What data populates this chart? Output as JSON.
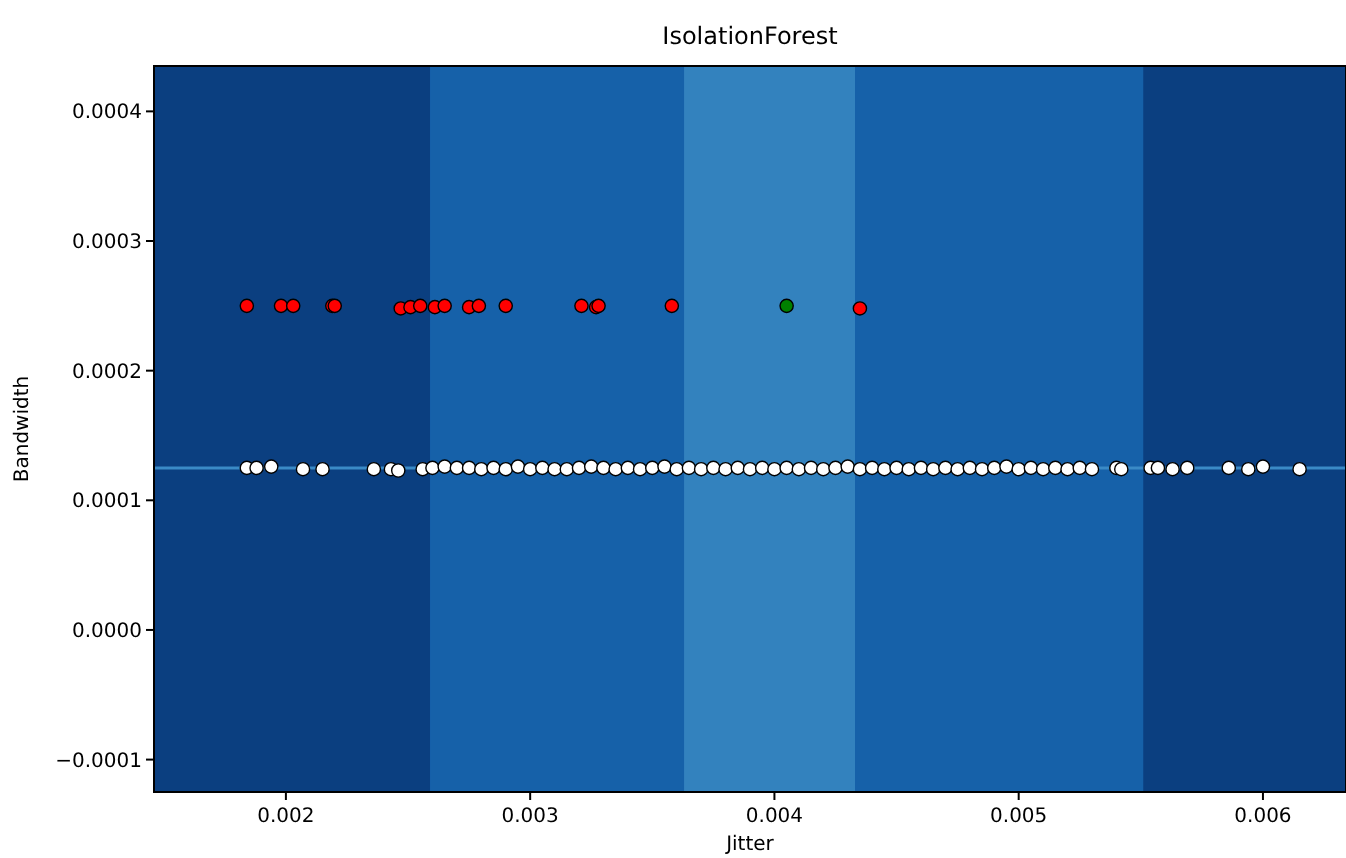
{
  "chart_data": {
    "type": "scatter",
    "title": "IsolationForest",
    "xlabel": "Jitter",
    "ylabel": "Bandwidth",
    "xlim": [
      0.00146,
      0.00634
    ],
    "ylim": [
      -0.000125,
      0.000435
    ],
    "xticks": [
      {
        "value": 0.002,
        "label": "0.002"
      },
      {
        "value": 0.003,
        "label": "0.003"
      },
      {
        "value": 0.004,
        "label": "0.004"
      },
      {
        "value": 0.005,
        "label": "0.005"
      },
      {
        "value": 0.006,
        "label": "0.006"
      }
    ],
    "yticks": [
      {
        "value": -0.0001,
        "label": "−0.0001"
      },
      {
        "value": 0,
        "label": "0.0000"
      },
      {
        "value": 0.0001,
        "label": "0.0001"
      },
      {
        "value": 0.0002,
        "label": "0.0002"
      },
      {
        "value": 0.0003,
        "label": "0.0003"
      },
      {
        "value": 0.0004,
        "label": "0.0004"
      }
    ],
    "bands": [
      {
        "axis": "x",
        "from": 0.00146,
        "to": 0.00634,
        "color": "#0b3f80"
      },
      {
        "axis": "x",
        "from": 0.00259,
        "to": 0.00551,
        "color": "#1661a9"
      },
      {
        "axis": "x",
        "from": 0.00363,
        "to": 0.00433,
        "color": "#3382be"
      }
    ],
    "ref_lines": [
      {
        "axis": "y",
        "value": 0.000125,
        "color": "#3a8ac6"
      }
    ],
    "marker": "circle",
    "series": [
      {
        "color": "#ffffff",
        "x": [
          0.00184,
          0.00188,
          0.00194,
          0.00207,
          0.00215,
          0.00236,
          0.00243,
          0.00246,
          0.00256,
          0.0026,
          0.00265,
          0.0027,
          0.00275,
          0.0028,
          0.00285,
          0.0029,
          0.00295,
          0.003,
          0.00305,
          0.0031,
          0.00315,
          0.0032,
          0.00325,
          0.0033,
          0.00335,
          0.0034,
          0.00345,
          0.0035,
          0.00355,
          0.0036,
          0.00365,
          0.0037,
          0.00375,
          0.0038,
          0.00385,
          0.0039,
          0.00395,
          0.004,
          0.00405,
          0.0041,
          0.00415,
          0.0042,
          0.00425,
          0.0043,
          0.00435,
          0.0044,
          0.00445,
          0.0045,
          0.00455,
          0.0046,
          0.00465,
          0.0047,
          0.00475,
          0.0048,
          0.00485,
          0.0049,
          0.00495,
          0.005,
          0.00505,
          0.0051,
          0.00515,
          0.0052,
          0.00525,
          0.0053,
          0.0054,
          0.00542,
          0.00554,
          0.00557,
          0.00563,
          0.00569,
          0.00586,
          0.00594,
          0.006,
          0.00615
        ],
        "values": [
          0.000125,
          0.000125,
          0.000126,
          0.000124,
          0.000124,
          0.000124,
          0.000124,
          0.000123,
          0.000124,
          0.000125,
          0.000126,
          0.000125,
          0.000125,
          0.000124,
          0.000125,
          0.000124,
          0.000126,
          0.000124,
          0.000125,
          0.000124,
          0.000124,
          0.000125,
          0.000126,
          0.000125,
          0.000124,
          0.000125,
          0.000124,
          0.000125,
          0.000126,
          0.000124,
          0.000125,
          0.000124,
          0.000125,
          0.000124,
          0.000125,
          0.000124,
          0.000125,
          0.000124,
          0.000125,
          0.000124,
          0.000125,
          0.000124,
          0.000125,
          0.000126,
          0.000124,
          0.000125,
          0.000124,
          0.000125,
          0.000124,
          0.000125,
          0.000124,
          0.000125,
          0.000124,
          0.000125,
          0.000124,
          0.000125,
          0.000126,
          0.000124,
          0.000125,
          0.000124,
          0.000125,
          0.000124,
          0.000125,
          0.000124,
          0.000125,
          0.000124,
          0.000125,
          0.000125,
          0.000124,
          0.000125,
          0.000125,
          0.000124,
          0.000126,
          0.000124
        ]
      },
      {
        "color": "#ff0000",
        "x": [
          0.00184,
          0.00198,
          0.00203,
          0.00219,
          0.0022,
          0.00247,
          0.00251,
          0.00255,
          0.00261,
          0.00265,
          0.00275,
          0.00279,
          0.0029,
          0.00321,
          0.00327,
          0.00328,
          0.00358,
          0.00435
        ],
        "values": [
          0.00025,
          0.00025,
          0.00025,
          0.00025,
          0.00025,
          0.000248,
          0.000249,
          0.00025,
          0.000249,
          0.00025,
          0.000249,
          0.00025,
          0.00025,
          0.00025,
          0.000249,
          0.00025,
          0.00025,
          0.000248
        ]
      },
      {
        "color": "#008000",
        "x": [
          0.00405
        ],
        "values": [
          0.00025
        ]
      }
    ]
  }
}
